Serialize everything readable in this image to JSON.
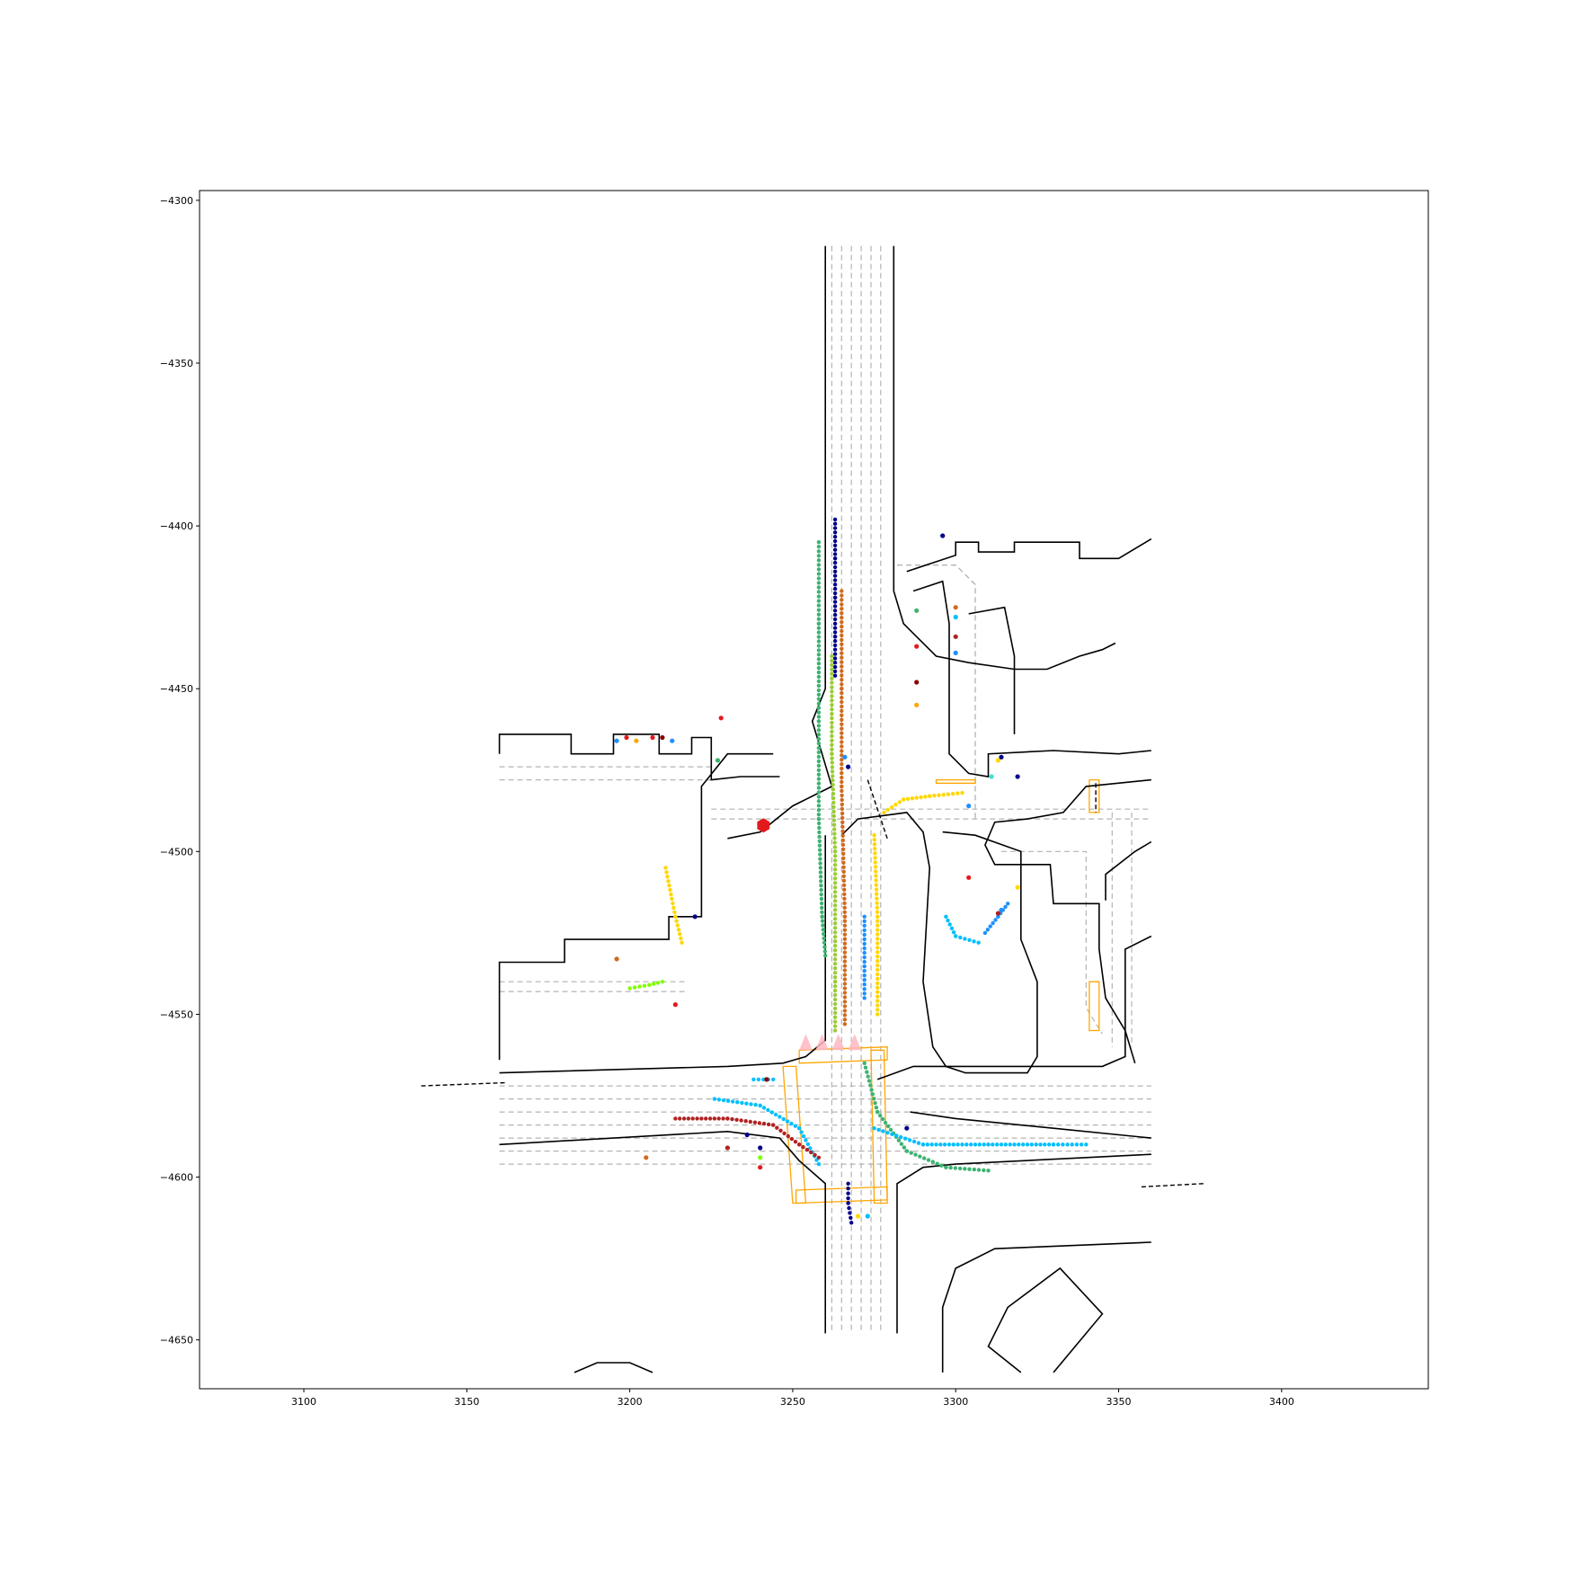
{
  "chart_data": {
    "type": "scatter",
    "title": "",
    "xlabel": "",
    "ylabel": "",
    "xlim": [
      3068,
      3445
    ],
    "ylim": [
      -4665,
      -4297
    ],
    "xticks": [
      3100,
      3150,
      3200,
      3250,
      3300,
      3350,
      3400
    ],
    "yticks": [
      -4300,
      -4350,
      -4400,
      -4450,
      -4500,
      -4550,
      -4600,
      -4650
    ],
    "grid": false,
    "colors": {
      "road_edge": "#000000",
      "lane_center": "#b4b4b4",
      "crosswalk": "#ffa500",
      "stop_point": "#e31a1c",
      "ego_marker": "#ffb6c1"
    },
    "road_edges": [
      [
        [
          3260,
          -4314
        ],
        [
          3260,
          -4450
        ],
        [
          3256,
          -4460
        ],
        [
          3262,
          -4480
        ],
        [
          3250,
          -4486
        ],
        [
          3240,
          -4494
        ],
        [
          3230,
          -4496
        ]
      ],
      [
        [
          3281,
          -4314
        ],
        [
          3281,
          -4420
        ],
        [
          3284,
          -4430
        ],
        [
          3294,
          -4440
        ],
        [
          3304,
          -4442
        ],
        [
          3318,
          -4444
        ],
        [
          3328,
          -4444
        ],
        [
          3338,
          -4440
        ],
        [
          3345,
          -4438
        ],
        [
          3349,
          -4436
        ]
      ],
      [
        [
          3260,
          -4495
        ],
        [
          3260,
          -4558
        ],
        [
          3254,
          -4563
        ],
        [
          3247,
          -4565
        ],
        [
          3230,
          -4566
        ],
        [
          3160,
          -4568
        ]
      ],
      [
        [
          3160,
          -4564
        ],
        [
          3160,
          -4534
        ],
        [
          3180,
          -4534
        ],
        [
          3180,
          -4527
        ],
        [
          3212,
          -4527
        ],
        [
          3212,
          -4520
        ],
        [
          3222,
          -4520
        ],
        [
          3222,
          -4480
        ],
        [
          3230,
          -4470
        ],
        [
          3244,
          -4470
        ]
      ],
      [
        [
          3160,
          -4470
        ],
        [
          3160,
          -4464
        ],
        [
          3182,
          -4464
        ],
        [
          3182,
          -4470
        ],
        [
          3195,
          -4470
        ],
        [
          3195,
          -4464
        ],
        [
          3209,
          -4464
        ],
        [
          3209,
          -4470
        ],
        [
          3219,
          -4470
        ],
        [
          3219,
          -4465
        ],
        [
          3225,
          -4465
        ],
        [
          3225,
          -4478
        ],
        [
          3234,
          -4477
        ],
        [
          3246,
          -4477
        ]
      ],
      [
        [
          3160,
          -4590
        ],
        [
          3230,
          -4586
        ],
        [
          3246,
          -4588
        ],
        [
          3252,
          -4595
        ],
        [
          3260,
          -4602
        ],
        [
          3260,
          -4648
        ]
      ],
      [
        [
          3282,
          -4648
        ],
        [
          3282,
          -4602
        ],
        [
          3290,
          -4597
        ],
        [
          3300,
          -4596
        ],
        [
          3360,
          -4593
        ]
      ],
      [
        [
          3360,
          -4588
        ],
        [
          3330,
          -4585
        ],
        [
          3300,
          -4582
        ],
        [
          3286,
          -4580
        ]
      ],
      [
        [
          3276,
          -4570
        ],
        [
          3287,
          -4566
        ],
        [
          3345,
          -4566
        ],
        [
          3352,
          -4563
        ],
        [
          3352,
          -4530
        ],
        [
          3360,
          -4526
        ]
      ],
      [
        [
          3285,
          -4414
        ],
        [
          3300,
          -4409
        ],
        [
          3300,
          -4405
        ],
        [
          3307,
          -4405
        ],
        [
          3307,
          -4408
        ],
        [
          3318,
          -4408
        ],
        [
          3318,
          -4405
        ],
        [
          3338,
          -4405
        ],
        [
          3338,
          -4410
        ],
        [
          3350,
          -4410
        ],
        [
          3360,
          -4404
        ]
      ],
      [
        [
          3287,
          -4420
        ],
        [
          3296,
          -4417
        ],
        [
          3298,
          -4430
        ],
        [
          3298,
          -4470
        ],
        [
          3304,
          -4476
        ],
        [
          3310,
          -4477
        ],
        [
          3310,
          -4470
        ],
        [
          3330,
          -4469
        ],
        [
          3350,
          -4470
        ],
        [
          3360,
          -4469
        ]
      ],
      [
        [
          3304,
          -4427
        ],
        [
          3315,
          -4425
        ],
        [
          3318,
          -4440
        ],
        [
          3318,
          -4464
        ]
      ],
      [
        [
          3360,
          -4478
        ],
        [
          3340,
          -4480
        ],
        [
          3333,
          -4488
        ],
        [
          3322,
          -4490
        ],
        [
          3312,
          -4491
        ],
        [
          3309,
          -4498
        ],
        [
          3312,
          -4504
        ],
        [
          3329,
          -4504
        ],
        [
          3330,
          -4516
        ],
        [
          3344,
          -4516
        ],
        [
          3344,
          -4530
        ],
        [
          3346,
          -4545
        ],
        [
          3352,
          -4555
        ],
        [
          3355,
          -4565
        ]
      ],
      [
        [
          3346,
          -4515
        ],
        [
          3346,
          -4507
        ],
        [
          3355,
          -4500
        ],
        [
          3360,
          -4497
        ]
      ],
      [
        [
          3265,
          -4495
        ],
        [
          3270,
          -4490
        ],
        [
          3285,
          -4488
        ],
        [
          3290,
          -4494
        ],
        [
          3292,
          -4505
        ],
        [
          3290,
          -4540
        ],
        [
          3293,
          -4560
        ],
        [
          3297,
          -4566
        ],
        [
          3303,
          -4568
        ],
        [
          3322,
          -4568
        ],
        [
          3325,
          -4563
        ],
        [
          3325,
          -4540
        ],
        [
          3320,
          -4527
        ],
        [
          3320,
          -4500
        ],
        [
          3306,
          -4495
        ],
        [
          3296,
          -4494
        ]
      ],
      [
        [
          3296,
          -4660
        ],
        [
          3296,
          -4640
        ],
        [
          3300,
          -4628
        ],
        [
          3312,
          -4622
        ],
        [
          3360,
          -4620
        ]
      ],
      [
        [
          3330,
          -4660
        ],
        [
          3340,
          -4648
        ],
        [
          3345,
          -4642
        ],
        [
          3332,
          -4628
        ],
        [
          3316,
          -4640
        ],
        [
          3310,
          -4652
        ],
        [
          3320,
          -4660
        ]
      ],
      [
        [
          3183,
          -4660
        ],
        [
          3190,
          -4657
        ],
        [
          3200,
          -4657
        ],
        [
          3207,
          -4660
        ]
      ]
    ],
    "stop_points": [
      {
        "x": 3241,
        "y": -4492,
        "shape": "hexagon"
      }
    ],
    "trajectories": [
      {
        "color": "#00008b",
        "points": [
          [
            3263,
            -4398
          ],
          [
            3263,
            -4410
          ],
          [
            3263,
            -4422
          ],
          [
            3263,
            -4434
          ],
          [
            3263,
            -4446
          ]
        ]
      },
      {
        "color": "#3cb371",
        "points": [
          [
            3258,
            -4405
          ],
          [
            3258,
            -4430
          ],
          [
            3258,
            -4460
          ],
          [
            3258,
            -4490
          ],
          [
            3259,
            -4520
          ],
          [
            3260,
            -4532
          ]
        ]
      },
      {
        "color": "#9acd32",
        "points": [
          [
            3262,
            -4440
          ],
          [
            3262,
            -4470
          ],
          [
            3263,
            -4500
          ],
          [
            3263,
            -4540
          ],
          [
            3263,
            -4555
          ]
        ]
      },
      {
        "color": "#d2691e",
        "points": [
          [
            3265,
            -4420
          ],
          [
            3265,
            -4450
          ],
          [
            3265,
            -4480
          ],
          [
            3266,
            -4520
          ],
          [
            3266,
            -4553
          ]
        ]
      },
      {
        "color": "#ffd700",
        "points": [
          [
            3278,
            -4488
          ],
          [
            3284,
            -4484
          ],
          [
            3292,
            -4483
          ],
          [
            3302,
            -4482
          ]
        ]
      },
      {
        "color": "#ffd700",
        "points": [
          [
            3275,
            -4495
          ],
          [
            3276,
            -4520
          ],
          [
            3276,
            -4550
          ]
        ]
      },
      {
        "color": "#1e90ff",
        "points": [
          [
            3272,
            -4520
          ],
          [
            3272,
            -4545
          ]
        ]
      },
      {
        "color": "#3cb371",
        "points": [
          [
            3272,
            -4565
          ],
          [
            3276,
            -4580
          ],
          [
            3285,
            -4592
          ],
          [
            3297,
            -4597
          ],
          [
            3310,
            -4598
          ]
        ]
      },
      {
        "color": "#00bfff",
        "points": [
          [
            3275,
            -4585
          ],
          [
            3290,
            -4590
          ],
          [
            3310,
            -4590
          ],
          [
            3330,
            -4590
          ],
          [
            3340,
            -4590
          ]
        ]
      },
      {
        "color": "#00bfff",
        "points": [
          [
            3226,
            -4576
          ],
          [
            3240,
            -4578
          ],
          [
            3252,
            -4585
          ],
          [
            3258,
            -4596
          ]
        ]
      },
      {
        "color": "#b22222",
        "points": [
          [
            3214,
            -4582
          ],
          [
            3230,
            -4582
          ],
          [
            3244,
            -4584
          ],
          [
            3252,
            -4590
          ],
          [
            3258,
            -4594
          ]
        ]
      },
      {
        "color": "#00008b",
        "points": [
          [
            3267,
            -4602
          ],
          [
            3267,
            -4608
          ],
          [
            3268,
            -4614
          ]
        ]
      },
      {
        "color": "#00bfff",
        "points": [
          [
            3297,
            -4520
          ],
          [
            3300,
            -4526
          ],
          [
            3307,
            -4528
          ]
        ]
      },
      {
        "color": "#1e90ff",
        "points": [
          [
            3309,
            -4525
          ],
          [
            3313,
            -4520
          ],
          [
            3316,
            -4516
          ]
        ]
      },
      {
        "color": "#ffd700",
        "points": [
          [
            3211,
            -4505
          ],
          [
            3214,
            -4520
          ],
          [
            3216,
            -4528
          ]
        ]
      },
      {
        "color": "#7fff00",
        "points": [
          [
            3200,
            -4542
          ],
          [
            3206,
            -4541
          ],
          [
            3210,
            -4540
          ]
        ]
      },
      {
        "color": "#00bfff",
        "points": [
          [
            3238,
            -4570
          ],
          [
            3244,
            -4570
          ]
        ]
      }
    ],
    "agents": [
      {
        "x": 3296,
        "y": -4403,
        "color": "#00008b"
      },
      {
        "x": 3288,
        "y": -4426,
        "color": "#3cb371"
      },
      {
        "x": 3288,
        "y": -4437,
        "color": "#e31a1c"
      },
      {
        "x": 3288,
        "y": -4448,
        "color": "#8b0000"
      },
      {
        "x": 3288,
        "y": -4455,
        "color": "#ffa500"
      },
      {
        "x": 3300,
        "y": -4425,
        "color": "#d2691e"
      },
      {
        "x": 3300,
        "y": -4428,
        "color": "#00bfff"
      },
      {
        "x": 3300,
        "y": -4434,
        "color": "#b22222"
      },
      {
        "x": 3300,
        "y": -4439,
        "color": "#1e90ff"
      },
      {
        "x": 3313,
        "y": -4472,
        "color": "#ffd700"
      },
      {
        "x": 3314,
        "y": -4471,
        "color": "#00008b"
      },
      {
        "x": 3311,
        "y": -4477,
        "color": "#40e0d0"
      },
      {
        "x": 3319,
        "y": -4477,
        "color": "#00008b"
      },
      {
        "x": 3304,
        "y": -4486,
        "color": "#1e90ff"
      },
      {
        "x": 3304,
        "y": -4508,
        "color": "#e31a1c"
      },
      {
        "x": 3319,
        "y": -4511,
        "color": "#ffd700"
      },
      {
        "x": 3313,
        "y": -4519,
        "color": "#b22222"
      },
      {
        "x": 3314,
        "y": -4518,
        "color": "#1e90ff"
      },
      {
        "x": 3196,
        "y": -4466,
        "color": "#1e90ff"
      },
      {
        "x": 3199,
        "y": -4465,
        "color": "#e31a1c"
      },
      {
        "x": 3202,
        "y": -4466,
        "color": "#ffa500"
      },
      {
        "x": 3207,
        "y": -4465,
        "color": "#e31a1c"
      },
      {
        "x": 3210,
        "y": -4465,
        "color": "#8b0000"
      },
      {
        "x": 3213,
        "y": -4466,
        "color": "#1e90ff"
      },
      {
        "x": 3228,
        "y": -4459,
        "color": "#e31a1c"
      },
      {
        "x": 3227,
        "y": -4472,
        "color": "#3cb371"
      },
      {
        "x": 3220,
        "y": -4520,
        "color": "#00008b"
      },
      {
        "x": 3196,
        "y": -4533,
        "color": "#d2691e"
      },
      {
        "x": 3214,
        "y": -4547,
        "color": "#e31a1c"
      },
      {
        "x": 3242,
        "y": -4570,
        "color": "#8b0000"
      },
      {
        "x": 3236,
        "y": -4587,
        "color": "#00008b"
      },
      {
        "x": 3230,
        "y": -4591,
        "color": "#b22222"
      },
      {
        "x": 3240,
        "y": -4591,
        "color": "#00008b"
      },
      {
        "x": 3240,
        "y": -4594,
        "color": "#7fff00"
      },
      {
        "x": 3240,
        "y": -4597,
        "color": "#e31a1c"
      },
      {
        "x": 3205,
        "y": -4594,
        "color": "#d2691e"
      },
      {
        "x": 3285,
        "y": -4585,
        "color": "#00008b"
      },
      {
        "x": 3266,
        "y": -4471,
        "color": "#1e90ff"
      },
      {
        "x": 3267,
        "y": -4474,
        "color": "#00008b"
      },
      {
        "x": 3270,
        "y": -4612,
        "color": "#ffd700"
      },
      {
        "x": 3273,
        "y": -4612,
        "color": "#00bfff"
      }
    ]
  }
}
